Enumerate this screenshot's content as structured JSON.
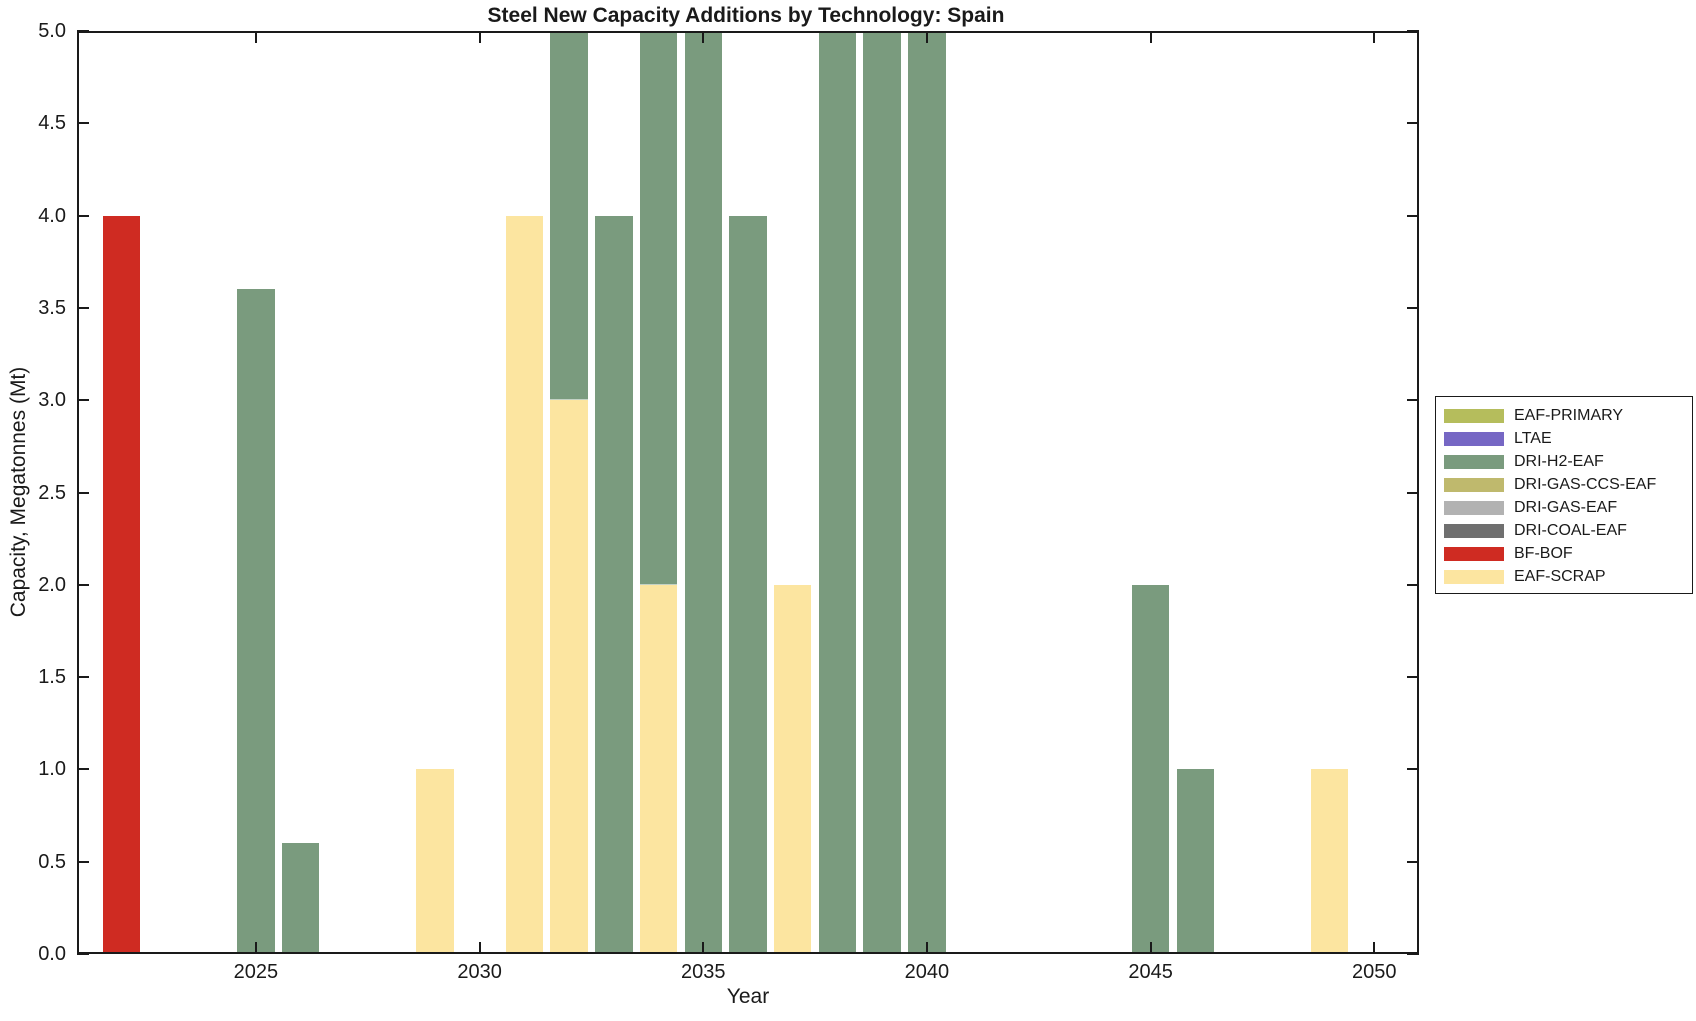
{
  "chart_data": {
    "type": "bar",
    "stacked": true,
    "title": "Steel New Capacity Additions by Technology: Spain",
    "xlabel": "Year",
    "ylabel": "Capacity, Megatonnes (Mt)",
    "xlim": [
      2021,
      2051
    ],
    "ylim": [
      0,
      5
    ],
    "x_ticks": [
      2025,
      2030,
      2035,
      2040,
      2045,
      2050
    ],
    "y_ticks": [
      {
        "value": 0.0,
        "label": "0.0"
      },
      {
        "value": 0.5,
        "label": "0.5"
      },
      {
        "value": 1.0,
        "label": "1.0"
      },
      {
        "value": 1.5,
        "label": "1.5"
      },
      {
        "value": 2.0,
        "label": "2.0"
      },
      {
        "value": 2.5,
        "label": "2.5"
      },
      {
        "value": 3.0,
        "label": "3.0"
      },
      {
        "value": 3.5,
        "label": "3.5"
      },
      {
        "value": 4.0,
        "label": "4.0"
      },
      {
        "value": 4.5,
        "label": "4.5"
      },
      {
        "value": 5.0,
        "label": "5.0"
      }
    ],
    "bar_width_years": 0.84,
    "grid": false,
    "legend_position": "right-outside",
    "colors": {
      "EAF-PRIMARY": "#b5bd5c",
      "LTAE": "#7667c4",
      "DRI-H2-EAF": "#7a9b7e",
      "DRI-GAS-CCS-EAF": "#bfb96d",
      "DRI-GAS-EAF": "#b2b2b2",
      "DRI-COAL-EAF": "#6f6f6f",
      "BF-BOF": "#cf2b22",
      "EAF-SCRAP": "#fce5a0"
    },
    "bars": [
      {
        "year": 2022,
        "segments": [
          {
            "tech": "BF-BOF",
            "value": 4.0
          }
        ]
      },
      {
        "year": 2025,
        "segments": [
          {
            "tech": "DRI-H2-EAF",
            "value": 3.6
          }
        ]
      },
      {
        "year": 2026,
        "segments": [
          {
            "tech": "DRI-H2-EAF",
            "value": 0.6
          }
        ]
      },
      {
        "year": 2029,
        "segments": [
          {
            "tech": "EAF-SCRAP",
            "value": 1.0
          }
        ]
      },
      {
        "year": 2031,
        "segments": [
          {
            "tech": "EAF-SCRAP",
            "value": 4.0
          }
        ]
      },
      {
        "year": 2032,
        "segments": [
          {
            "tech": "EAF-SCRAP",
            "value": 3.0
          },
          {
            "tech": "DRI-H2-EAF",
            "value": 2.0
          }
        ]
      },
      {
        "year": 2033,
        "segments": [
          {
            "tech": "DRI-H2-EAF",
            "value": 4.0
          }
        ]
      },
      {
        "year": 2034,
        "segments": [
          {
            "tech": "EAF-SCRAP",
            "value": 2.0
          },
          {
            "tech": "DRI-H2-EAF",
            "value": 3.0
          }
        ]
      },
      {
        "year": 2035,
        "segments": [
          {
            "tech": "DRI-H2-EAF",
            "value": 5.0
          }
        ]
      },
      {
        "year": 2036,
        "segments": [
          {
            "tech": "DRI-H2-EAF",
            "value": 4.0
          }
        ]
      },
      {
        "year": 2037,
        "segments": [
          {
            "tech": "EAF-SCRAP",
            "value": 2.0
          }
        ]
      },
      {
        "year": 2038,
        "segments": [
          {
            "tech": "DRI-H2-EAF",
            "value": 5.0
          }
        ]
      },
      {
        "year": 2039,
        "segments": [
          {
            "tech": "DRI-H2-EAF",
            "value": 5.0
          }
        ]
      },
      {
        "year": 2040,
        "segments": [
          {
            "tech": "DRI-H2-EAF",
            "value": 5.0
          }
        ]
      },
      {
        "year": 2045,
        "segments": [
          {
            "tech": "DRI-H2-EAF",
            "value": 2.0
          }
        ]
      },
      {
        "year": 2046,
        "segments": [
          {
            "tech": "DRI-H2-EAF",
            "value": 1.0
          }
        ]
      },
      {
        "year": 2049,
        "segments": [
          {
            "tech": "EAF-SCRAP",
            "value": 1.0
          }
        ]
      }
    ]
  },
  "legend": {
    "items": [
      {
        "label": "EAF-PRIMARY",
        "color": "#b5bd5c"
      },
      {
        "label": "LTAE",
        "color": "#7667c4"
      },
      {
        "label": "DRI-H2-EAF",
        "color": "#7a9b7e"
      },
      {
        "label": "DRI-GAS-CCS-EAF",
        "color": "#bfb96d"
      },
      {
        "label": "DRI-GAS-EAF",
        "color": "#b2b2b2"
      },
      {
        "label": "DRI-COAL-EAF",
        "color": "#6f6f6f"
      },
      {
        "label": "BF-BOF",
        "color": "#cf2b22"
      },
      {
        "label": "EAF-SCRAP",
        "color": "#fce5a0"
      }
    ]
  }
}
